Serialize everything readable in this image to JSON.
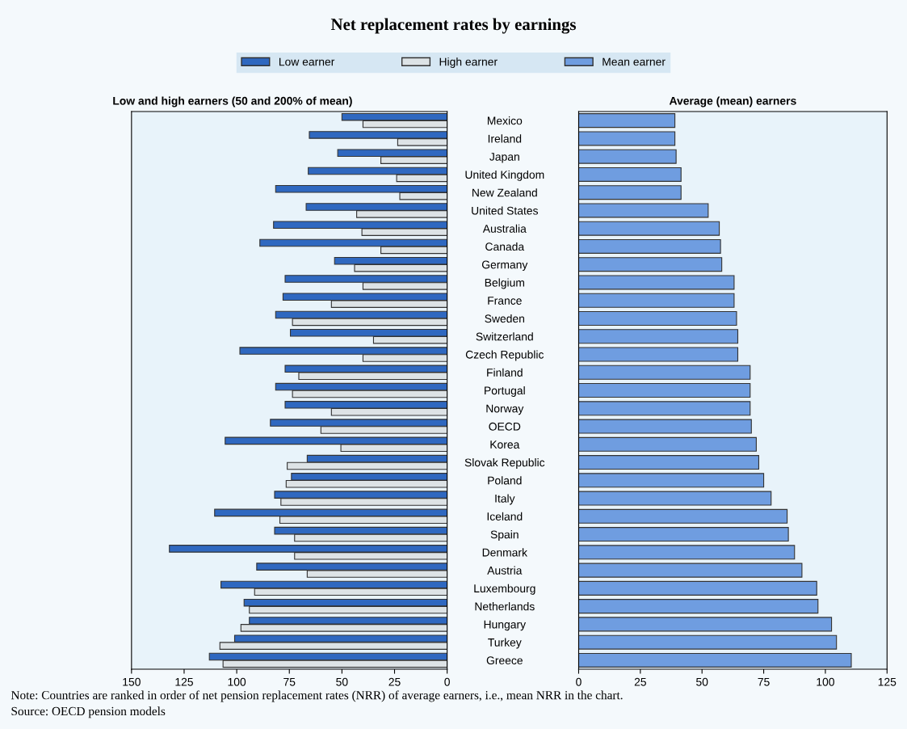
{
  "chart_data": [
    {
      "type": "bar",
      "orientation": "horizontal",
      "title": "Net replacement rates by earnings",
      "subtitle": "Low and high earners (50 and 200% of mean)",
      "series": [
        {
          "name": "Low earner",
          "color": "#2f68c0",
          "values": [
            50,
            65.5,
            52,
            66,
            81.5,
            67,
            82.5,
            89,
            53.5,
            77,
            78,
            81.5,
            74.5,
            98.5,
            77,
            81.5,
            77,
            84,
            105.5,
            66.5,
            74,
            82,
            110.5,
            82,
            132,
            90.5,
            107.5,
            96.5,
            94,
            101,
            113
          ]
        },
        {
          "name": "High earner",
          "color": "#dde3e6",
          "values": [
            40,
            23.5,
            31.5,
            24,
            22.5,
            43,
            40.5,
            31.5,
            44,
            40,
            55,
            73.5,
            35,
            40,
            70.5,
            73.5,
            55,
            60,
            50.5,
            76,
            76.5,
            79,
            79.5,
            72.5,
            72.5,
            66.5,
            91.5,
            94,
            98,
            108,
            106.5
          ]
        }
      ],
      "xlim": [
        150,
        0
      ],
      "xticks": [
        150,
        125,
        100,
        75,
        50,
        25,
        0
      ],
      "legend": "top",
      "tick_labels": "x",
      "annotations": [
        "Note: Countries are ranked in order of net pension replacement rates (NRR) of average earners, i.e., mean NRR in the chart.",
        "Source: OECD pension models"
      ]
    },
    {
      "type": "bar",
      "orientation": "horizontal",
      "subtitle": "Average (mean) earners",
      "categories": [
        "Mexico",
        "Ireland",
        "Japan",
        "United Kingdom",
        "New Zealand",
        "United States",
        "Australia",
        "Canada",
        "Germany",
        "Belgium",
        "France",
        "Sweden",
        "Switzerland",
        "Czech Republic",
        "Finland",
        "Portugal",
        "Norway",
        "OECD",
        "Korea",
        "Slovak Republic",
        "Poland",
        "Italy",
        "Iceland",
        "Spain",
        "Denmark",
        "Austria",
        "Luxembourg",
        "Netherlands",
        "Hungary",
        "Turkey",
        "Greece"
      ],
      "series": [
        {
          "name": "Mean earner",
          "color": "#6f9de0",
          "values": [
            39,
            39,
            39.5,
            41.5,
            41.5,
            52.5,
            57,
            57.5,
            58,
            63,
            63,
            64,
            64.5,
            64.5,
            69.5,
            69.5,
            69.5,
            70,
            72,
            73,
            75,
            78,
            84.5,
            85,
            87.5,
            90.5,
            96.5,
            97,
            102.5,
            104.5,
            110.5
          ]
        }
      ],
      "xlim": [
        0,
        125
      ],
      "xticks": [
        0,
        25,
        50,
        75,
        100,
        125
      ],
      "legend": "top"
    }
  ]
}
